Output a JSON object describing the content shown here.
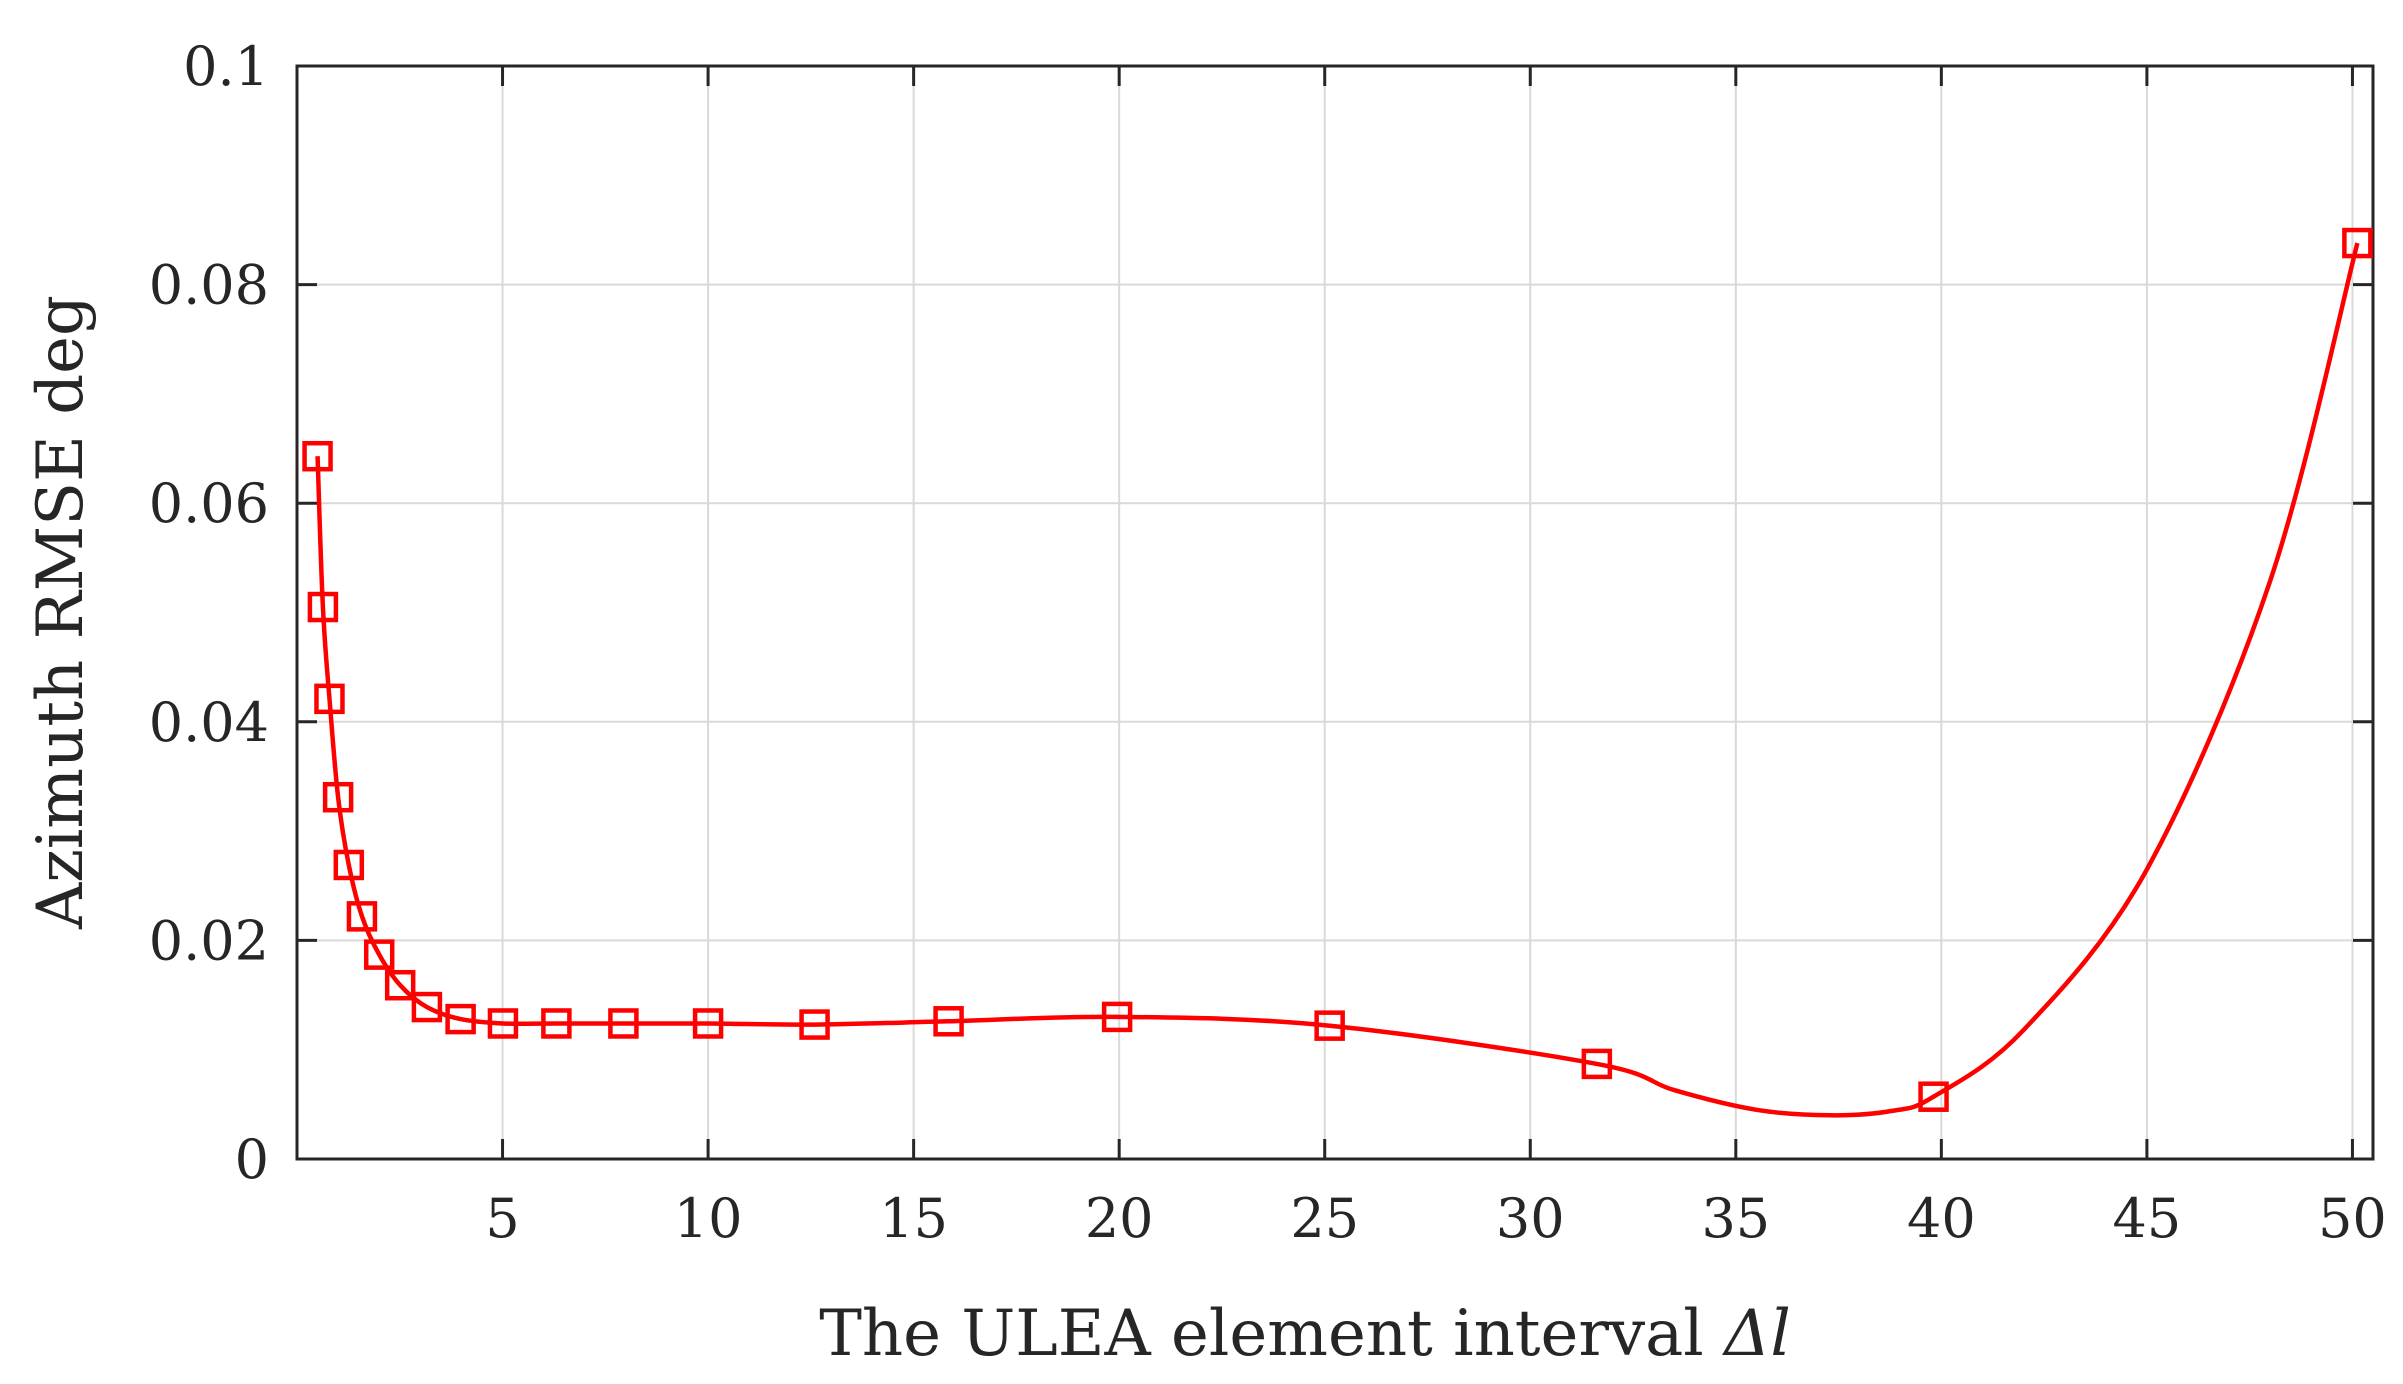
{
  "chart_data": {
    "type": "line",
    "xlabel_text": "The ULEA element interval ",
    "xlabel_symbol": "Δl",
    "ylabel": "Azimuth RMSE deg",
    "xlim": [
      0,
      50.5
    ],
    "ylim": [
      0,
      0.1
    ],
    "xticks": [
      5,
      10,
      15,
      20,
      25,
      30,
      35,
      40,
      45,
      50
    ],
    "xtick_labels": [
      "5",
      "10",
      "15",
      "20",
      "25",
      "30",
      "35",
      "40",
      "45",
      "50"
    ],
    "yticks": [
      0,
      0.02,
      0.04,
      0.06,
      0.08,
      0.1
    ],
    "ytick_labels": [
      "0",
      "0.02",
      "0.04",
      "0.06",
      "0.08",
      "0.1"
    ],
    "grid": true,
    "series_color": "#ff0000",
    "marker": "square",
    "x": [
      0.5,
      0.63,
      0.79,
      1.0,
      1.26,
      1.58,
      2.0,
      2.51,
      3.16,
      3.98,
      5.01,
      6.31,
      7.94,
      10.0,
      12.59,
      15.85,
      19.95,
      25.12,
      31.62,
      39.81,
      50.12
    ],
    "y": [
      0.0643,
      0.0505,
      0.0421,
      0.0331,
      0.0269,
      0.0222,
      0.0187,
      0.0159,
      0.0139,
      0.0128,
      0.0124,
      0.0124,
      0.0124,
      0.0124,
      0.0123,
      0.0126,
      0.013,
      0.0122,
      0.0087,
      0.0057,
      0.0838
    ],
    "curve_x": [
      31.62,
      33.5,
      35.5,
      37.3,
      38.8,
      39.81,
      42.0,
      45.0,
      48.0,
      50.12
    ],
    "curve_y": [
      0.0087,
      0.0063,
      0.0045,
      0.004,
      0.0044,
      0.0057,
      0.0118,
      0.0265,
      0.0529,
      0.0838
    ]
  }
}
